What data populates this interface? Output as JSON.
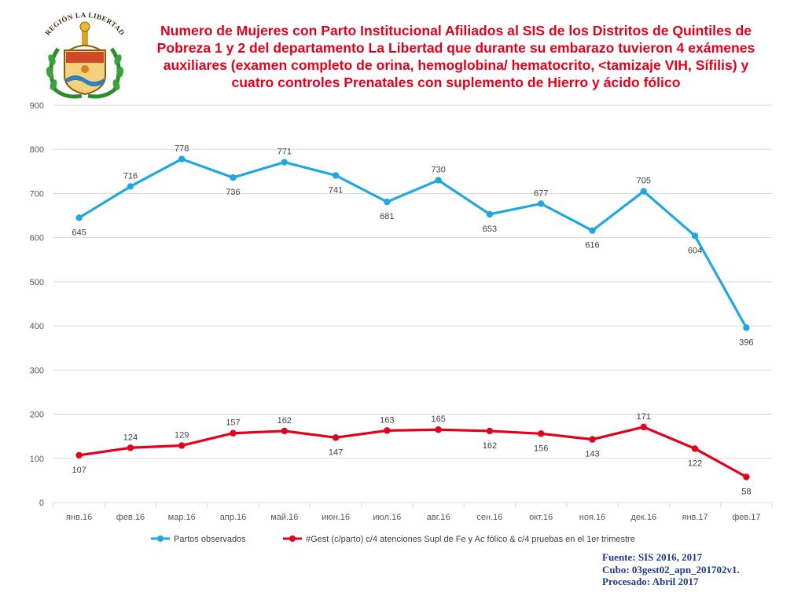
{
  "title": "Numero de Mujeres con Parto Institucional  Afiliados al SIS de los Distritos de Quintiles de Pobreza 1 y 2  del departamento La Libertad que durante su embarazo tuvieron 4 exámenes auxiliares (examen completo de orina, hemoglobina/ hematocrito, <tamizaje VIH, Sífilis) y cuatro controles Prenatales con suplemento de Hierro y ácido fólico",
  "logo": {
    "text": "REGIÓN LA LIBERTAD",
    "icon": "regional-coat-of-arms"
  },
  "source": {
    "line1": "Fuente: SIS 2016, 2017",
    "line2": "Cubo: 03gest02_apn_201702v1.",
    "line3": "Procesado: Abril 2017"
  },
  "colors": {
    "series1": "#1fa8e0",
    "series2": "#e3001b",
    "grid": "#d9d9d9",
    "axis_text": "#595959"
  },
  "chart_data": {
    "type": "line",
    "title": "",
    "xlabel": "",
    "ylabel": "",
    "ylim": [
      0,
      900
    ],
    "yticks": [
      0,
      100,
      200,
      300,
      400,
      500,
      600,
      700,
      800,
      900
    ],
    "grid": true,
    "legend_position": "bottom",
    "categories": [
      "янв.16",
      "фев.16",
      "мар.16",
      "апр.16",
      "май.16",
      "июн.16",
      "июл.16",
      "авг.16",
      "сен.16",
      "окт.16",
      "ноя.16",
      "дек.16",
      "янв.17",
      "фев.17"
    ],
    "series": [
      {
        "name": "Partos observados",
        "color": "#1fa8e0",
        "values": [
          645,
          716,
          778,
          736,
          771,
          741,
          681,
          730,
          653,
          677,
          616,
          705,
          604,
          396
        ]
      },
      {
        "name": "#Gest (c/parto) c/4 atenciones Supl de Fe y Ac fólico & c/4 pruebas en el 1er trimestre",
        "color": "#e3001b",
        "values": [
          107,
          124,
          129,
          157,
          162,
          147,
          163,
          165,
          162,
          156,
          143,
          171,
          122,
          58
        ]
      }
    ]
  }
}
